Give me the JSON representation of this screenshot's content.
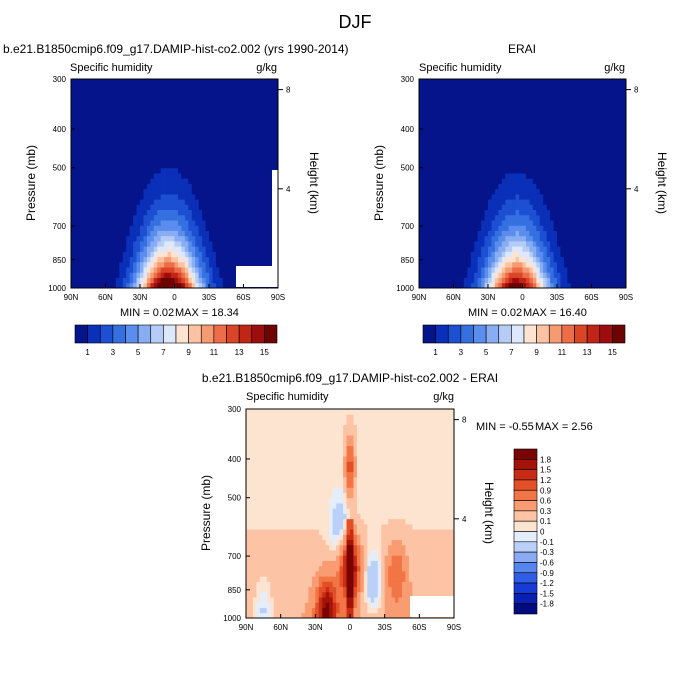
{
  "figure": {
    "title": "DJF"
  },
  "chart_data": [
    {
      "id": "model",
      "type": "heatmap",
      "title": "b.e21.B1850cmip6.f09_g17.DAMIP-hist-co2.002 (yrs 1990-2014)",
      "subtitle_left": "Specific humidity",
      "subtitle_right": "g/kg",
      "ylabel": "Pressure (mb)",
      "ylabel_right": "Height (km)",
      "x_ticks": [
        "90N",
        "60N",
        "30N",
        "0",
        "30S",
        "60S",
        "90S"
      ],
      "x_tick_values": [
        90,
        60,
        30,
        0,
        -30,
        -60,
        -90
      ],
      "y_ticks": [
        "300",
        "400",
        "500",
        "700",
        "850",
        "1000"
      ],
      "y_tick_values": [
        300,
        400,
        500,
        700,
        850,
        1000
      ],
      "height_ticks": [
        "8",
        "4"
      ],
      "height_tick_values": [
        8,
        4
      ],
      "xlim": [
        90,
        -90
      ],
      "ylim": [
        1000,
        300
      ],
      "min_label": "MIN =   0.02",
      "max_label": "MAX =  18.34",
      "min": 0.02,
      "max": 18.34,
      "peak_lat": 5,
      "peak_value": 18.34,
      "colorbar_labels": [
        "1",
        "3",
        "5",
        "7",
        "9",
        "11",
        "13",
        "15"
      ],
      "colorbar_levels": [
        1,
        2,
        3,
        4,
        5,
        6,
        7,
        8,
        9,
        10,
        11,
        12,
        13,
        14,
        15
      ]
    },
    {
      "id": "obs",
      "type": "heatmap",
      "title": "ERAI",
      "subtitle_left": "Specific humidity",
      "subtitle_right": "g/kg",
      "ylabel": "Pressure (mb)",
      "ylabel_right": "Height (km)",
      "x_ticks": [
        "90N",
        "60N",
        "30N",
        "0",
        "30S",
        "60S",
        "90S"
      ],
      "x_tick_values": [
        90,
        60,
        30,
        0,
        -30,
        -60,
        -90
      ],
      "y_ticks": [
        "300",
        "400",
        "500",
        "700",
        "850",
        "1000"
      ],
      "y_tick_values": [
        300,
        400,
        500,
        700,
        850,
        1000
      ],
      "height_ticks": [
        "8",
        "4"
      ],
      "height_tick_values": [
        8,
        4
      ],
      "xlim": [
        90,
        -90
      ],
      "ylim": [
        1000,
        300
      ],
      "min_label": "MIN =   0.02",
      "max_label": "MAX =  16.40",
      "min": 0.02,
      "max": 16.4,
      "peak_lat": 5,
      "peak_value": 16.4,
      "colorbar_labels": [
        "1",
        "3",
        "5",
        "7",
        "9",
        "11",
        "13",
        "15"
      ],
      "colorbar_levels": [
        1,
        2,
        3,
        4,
        5,
        6,
        7,
        8,
        9,
        10,
        11,
        12,
        13,
        14,
        15
      ]
    },
    {
      "id": "diff",
      "type": "heatmap",
      "title": "b.e21.B1850cmip6.f09_g17.DAMIP-hist-co2.002 - ERAI",
      "subtitle_left": "Specific humidity",
      "subtitle_right": "g/kg",
      "ylabel": "Pressure (mb)",
      "ylabel_right": "Height (km)",
      "x_ticks": [
        "90N",
        "60N",
        "30N",
        "0",
        "30S",
        "60S",
        "90S"
      ],
      "x_tick_values": [
        90,
        60,
        30,
        0,
        -30,
        -60,
        -90
      ],
      "y_ticks": [
        "300",
        "400",
        "500",
        "700",
        "850",
        "1000"
      ],
      "y_tick_values": [
        300,
        400,
        500,
        700,
        850,
        1000
      ],
      "height_ticks": [
        "8",
        "4"
      ],
      "height_tick_values": [
        8,
        4
      ],
      "xlim": [
        90,
        -90
      ],
      "ylim": [
        1000,
        300
      ],
      "min_label": "MIN =  -0.55",
      "max_label": "MAX =   2.56",
      "min": -0.55,
      "max": 2.56,
      "colorbar_labels": [
        "1.8",
        "1.5",
        "1.2",
        "0.9",
        "0.6",
        "0.3",
        "0.1",
        "0",
        "-0.1",
        "-0.3",
        "-0.6",
        "-0.9",
        "-1.2",
        "-1.5",
        "-1.8"
      ],
      "colorbar_levels": [
        -1.8,
        -1.5,
        -1.2,
        -0.9,
        -0.6,
        -0.3,
        -0.1,
        0,
        0.1,
        0.3,
        0.6,
        0.9,
        1.2,
        1.5,
        1.8
      ],
      "features": [
        {
          "lat": 0,
          "p": 750,
          "value": 1.6,
          "note": "vertical positive plume near equator"
        },
        {
          "lat": 0,
          "p": 420,
          "value": 1.0
        },
        {
          "lat": 8,
          "p": 600,
          "value": -0.4
        },
        {
          "lat": -20,
          "p": 820,
          "value": -0.5
        },
        {
          "lat": 20,
          "p": 960,
          "value": 1.7
        },
        {
          "lat": -40,
          "p": 780,
          "value": 0.7
        },
        {
          "lat": 75,
          "p": 980,
          "value": -0.4
        }
      ]
    }
  ],
  "colors": {
    "seq": [
      "#05148b",
      "#0a2fb8",
      "#1c4fd2",
      "#3570e0",
      "#5a8ded",
      "#88adf3",
      "#b5cdf6",
      "#dde8fa",
      "#fde4d2",
      "#fbc2a3",
      "#f69a72",
      "#ec6d48",
      "#db4527",
      "#c22516",
      "#9e0d0d",
      "#6d0303"
    ],
    "div": [
      "#020b7e",
      "#0a1fb3",
      "#163bd6",
      "#2f5de6",
      "#5685ef",
      "#8aabf4",
      "#bbd0f8",
      "#e4eefb",
      "#fde4d1",
      "#fcc4a4",
      "#f99c72",
      "#f27546",
      "#e34f26",
      "#c82c14",
      "#a31308",
      "#7a0303"
    ]
  }
}
